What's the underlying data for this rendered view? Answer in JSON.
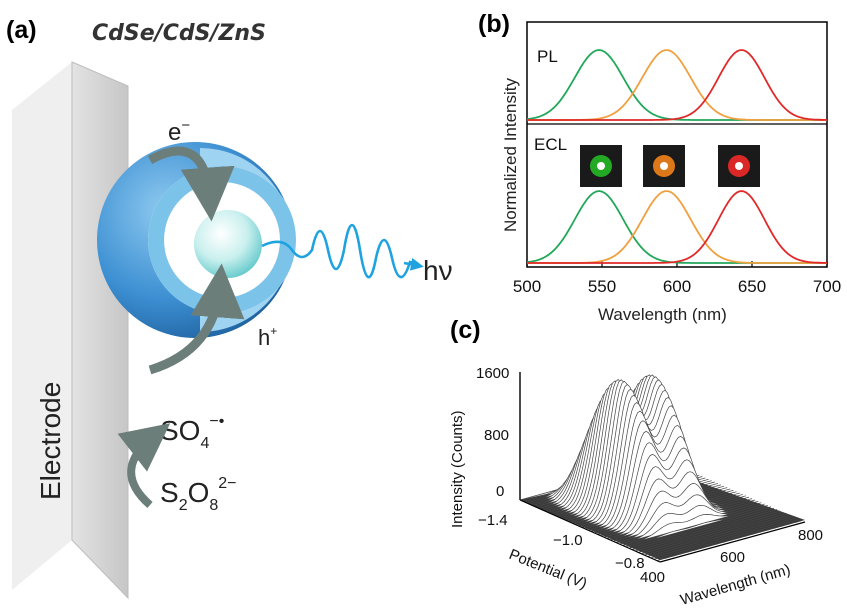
{
  "panel_a": {
    "label": "(a)",
    "title": "CdSe/CdS/ZnS",
    "electrode_label": "Electrode",
    "electron_label": "e",
    "electron_sup": "−",
    "hole_label": "h",
    "hole_sup": "+",
    "photon_label": "hν",
    "radical": {
      "base": "SO",
      "sub": "4",
      "sup": "−•"
    },
    "persulfate": {
      "s": "S",
      "s_sub": "2",
      "o": "O",
      "o_sub": "8",
      "sup": "2−"
    }
  },
  "panel_b": {
    "label": "(b)",
    "chart_data": {
      "type": "line",
      "xlabel": "Wavelength (nm)",
      "ylabel": "Normalized Intensity",
      "xlim": [
        500,
        700
      ],
      "x_ticks": [
        "500",
        "550",
        "600",
        "650",
        "700"
      ],
      "subplot_labels": [
        "PL",
        "ECL"
      ],
      "series": [
        {
          "color": "#22a85a",
          "peak": 548,
          "fwhm": 38
        },
        {
          "color": "#f0a040",
          "peak": 593,
          "fwhm": 38
        },
        {
          "color": "#e02a2a",
          "peak": 643,
          "fwhm": 36
        }
      ],
      "inset_colors": [
        "#27c327",
        "#ff8a1a",
        "#ff2a2a"
      ]
    }
  },
  "panel_c": {
    "label": "(c)",
    "chart_data": {
      "type": "surface",
      "zlabel": "Intensity (Counts)",
      "z_ticks": [
        "0",
        "800",
        "1600"
      ],
      "zlim": [
        0,
        1600
      ],
      "potential_label": "Potential (V)",
      "potential_ticks": [
        "−1.4",
        "−1.0",
        "−0.8"
      ],
      "wavelength_label": "Wavelength (nm)",
      "wavelength_ticks": [
        "400",
        "600",
        "800"
      ],
      "peaks": [
        {
          "wavelength": 530,
          "intensity": 1600
        },
        {
          "wavelength": 620,
          "intensity": 1550
        }
      ]
    }
  },
  "colors": {
    "electrode": "#cfcfcf",
    "core_outer": "#3a8fd0",
    "shell_ring": "#7ec4ec",
    "wave": "#1ea3e0",
    "arrow": "#6c7e7a"
  }
}
